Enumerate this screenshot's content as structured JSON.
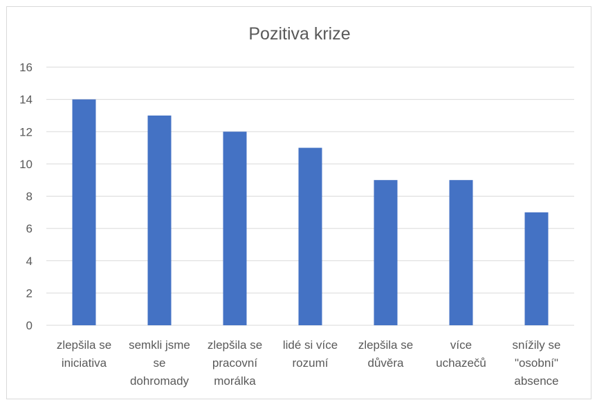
{
  "chart_data": {
    "type": "bar",
    "title": "Pozitiva krize",
    "xlabel": "",
    "ylabel": "",
    "ylim": [
      0,
      16
    ],
    "yticks": [
      0,
      2,
      4,
      6,
      8,
      10,
      12,
      14,
      16
    ],
    "grid": true,
    "legend": "none",
    "categories": [
      [
        "zlepšila se",
        "iniciativa"
      ],
      [
        "semkli jsme",
        "se",
        "dohromady"
      ],
      [
        "zlepšila se",
        "pracovní",
        "morálka"
      ],
      [
        "lidé si více",
        "rozumí"
      ],
      [
        "zlepšila se",
        "důvěra"
      ],
      [
        "více",
        "uchazečů"
      ],
      [
        "snížily se",
        "\"osobní\"",
        "absence"
      ]
    ],
    "values": [
      14,
      13,
      12,
      11,
      9,
      9,
      7
    ],
    "colors": {
      "bar": "#4472c4",
      "grid": "#d9d9d9",
      "text": "#595959"
    }
  }
}
